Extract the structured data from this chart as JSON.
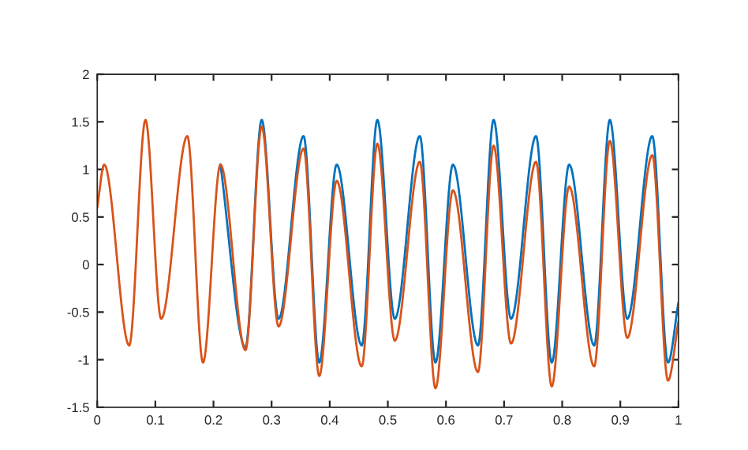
{
  "chart_data": {
    "type": "line",
    "x": [
      0,
      0.012,
      0.055,
      0.083,
      0.11,
      0.155,
      0.182,
      0.212,
      0.255,
      0.283,
      0.312,
      0.355,
      0.382,
      0.412,
      0.455,
      0.482,
      0.512,
      0.555,
      0.582,
      0.612,
      0.655,
      0.682,
      0.712,
      0.755,
      0.782,
      0.812,
      0.855,
      0.882,
      0.912,
      0.955,
      0.982,
      1.0
    ],
    "series": [
      {
        "color": "#0072bd",
        "values": [
          null,
          null,
          null,
          null,
          null,
          null,
          null,
          1.05,
          -0.87,
          1.52,
          -0.57,
          1.35,
          -1.03,
          1.05,
          -0.85,
          1.52,
          -0.57,
          1.35,
          -1.03,
          1.05,
          -0.85,
          1.52,
          -0.57,
          1.35,
          -1.03,
          1.05,
          -0.85,
          1.52,
          -0.57,
          1.35,
          -1.03,
          -0.4
        ]
      },
      {
        "color": "#d95319",
        "values": [
          0.6,
          1.05,
          -0.85,
          1.52,
          -0.57,
          1.35,
          -1.03,
          1.05,
          -0.9,
          1.45,
          -0.65,
          1.22,
          -1.17,
          0.88,
          -1.07,
          1.27,
          -0.8,
          1.08,
          -1.3,
          0.78,
          -1.13,
          1.25,
          -0.83,
          1.08,
          -1.28,
          0.82,
          -1.07,
          1.3,
          -0.77,
          1.15,
          -1.22,
          -0.6
        ]
      }
    ],
    "xlim": [
      0,
      1
    ],
    "xticks": [
      0,
      0.1,
      0.2,
      0.3,
      0.4,
      0.5,
      0.6,
      0.7,
      0.8,
      0.9,
      1
    ],
    "ylim": [
      -1.5,
      2
    ],
    "yticks": [
      -1.5,
      -1,
      -0.5,
      0,
      0.5,
      1,
      1.5,
      2
    ],
    "grid": false,
    "marker": "none",
    "line_style": "solid"
  }
}
